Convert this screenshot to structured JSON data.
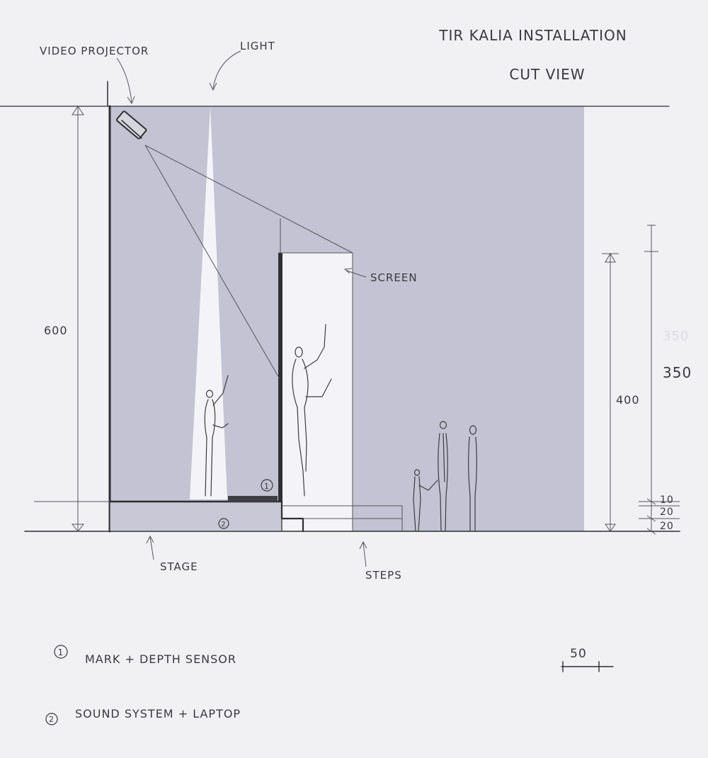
{
  "title": {
    "line1": "TIR KALIA INSTALLATION",
    "line2": "CUT VIEW"
  },
  "labels": {
    "video_projector": "VIDEO PROJECTOR",
    "light": "LIGHT",
    "screen": "SCREEN",
    "stage": "STAGE",
    "steps": "STEPS"
  },
  "markers": {
    "m1": "1",
    "m2": "2"
  },
  "dimensions": {
    "total_height": "600",
    "screen_height": "400",
    "screen_top": "350",
    "ghost_screen_top": "350",
    "step_1": "10",
    "step_2": "20",
    "step_3": "20"
  },
  "legend": [
    {
      "num": "1",
      "text": "MARK + DEPTH SENSOR"
    },
    {
      "num": "2",
      "text": "SOUND SYSTEM + LAPTOP"
    }
  ],
  "scale_bar": {
    "label": "50"
  },
  "colors": {
    "paper": "#f1f1f4",
    "shade": "#c3c3d3",
    "light_beam": "#f4f4f8",
    "ink": "#2e2e32"
  }
}
